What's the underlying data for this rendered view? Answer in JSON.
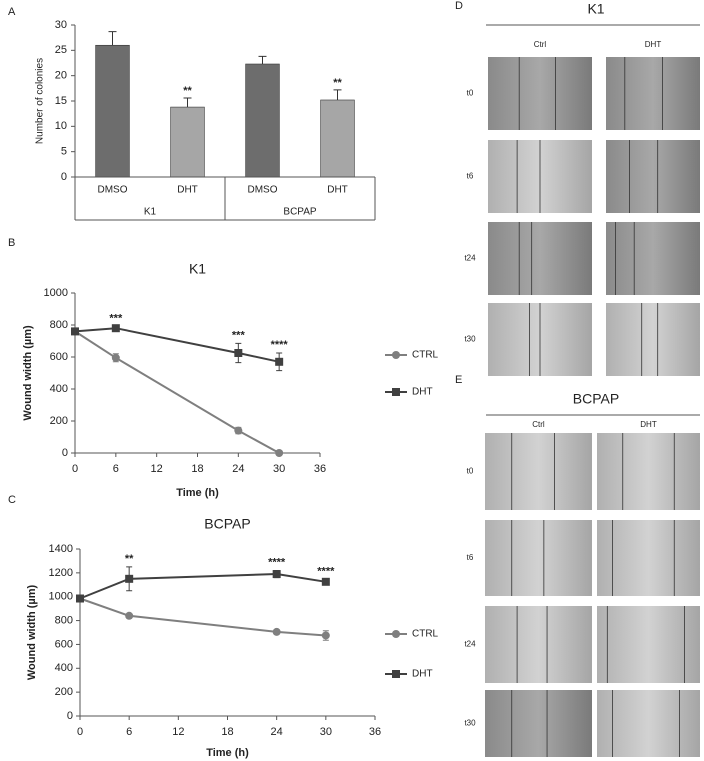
{
  "chart_data": [
    {
      "type": "bar",
      "panel": "A",
      "y_label": "Number of colonies",
      "categories": [
        "DMSO",
        "DHT",
        "DMSO",
        "DHT"
      ],
      "groups": [
        "K1",
        "BCPAP"
      ],
      "values": [
        26,
        13.8,
        22.3,
        15.2
      ],
      "errors": [
        2.7,
        1.8,
        1.5,
        2.0
      ],
      "colors": [
        "#6d6d6d",
        "#a6a6a6",
        "#6d6d6d",
        "#a6a6a6"
      ],
      "significance": [
        null,
        "**",
        null,
        "**"
      ],
      "ylim": [
        0,
        30
      ],
      "yticks": [
        0,
        5,
        10,
        15,
        20,
        25,
        30
      ]
    },
    {
      "type": "line",
      "panel": "B",
      "title": "K1",
      "x_label": "Time (h)",
      "y_label": "Wound width (µm)",
      "x": [
        0,
        6,
        24,
        30
      ],
      "series": [
        {
          "name": "CTRL",
          "color": "#7f7f7f",
          "marker": "circle",
          "values": [
            760,
            595,
            140,
            0
          ],
          "errors": [
            0,
            25,
            20,
            0
          ]
        },
        {
          "name": "DHT",
          "color": "#404040",
          "marker": "square",
          "values": [
            760,
            780,
            625,
            570
          ],
          "errors": [
            0,
            10,
            60,
            55
          ]
        }
      ],
      "significance": [
        null,
        "***",
        "***",
        "****"
      ],
      "xlim": [
        0,
        36
      ],
      "xticks": [
        0,
        6,
        12,
        18,
        24,
        30,
        36
      ],
      "ylim": [
        0,
        1000
      ],
      "yticks": [
        0,
        200,
        400,
        600,
        800,
        1000
      ]
    },
    {
      "type": "line",
      "panel": "C",
      "title": "BCPAP",
      "x_label": "Time (h)",
      "y_label": "Wound width (µm)",
      "x": [
        0,
        6,
        24,
        30
      ],
      "series": [
        {
          "name": "CTRL",
          "color": "#7f7f7f",
          "marker": "circle",
          "values": [
            985,
            840,
            705,
            675
          ],
          "errors": [
            0,
            15,
            15,
            40
          ]
        },
        {
          "name": "DHT",
          "color": "#404040",
          "marker": "square",
          "values": [
            985,
            1150,
            1190,
            1125
          ],
          "errors": [
            0,
            100,
            30,
            20
          ]
        }
      ],
      "significance": [
        null,
        "**",
        "****",
        "****"
      ],
      "xlim": [
        0,
        36
      ],
      "xticks": [
        0,
        6,
        12,
        18,
        24,
        30,
        36
      ],
      "ylim": [
        0,
        1400
      ],
      "yticks": [
        0,
        200,
        400,
        600,
        800,
        1000,
        1200,
        1400
      ]
    }
  ],
  "panels": [
    {
      "label": "D",
      "title": "K1",
      "columns": [
        "Ctrl",
        "DHT"
      ],
      "rows": [
        "t0",
        "t6",
        "t24",
        "t30"
      ]
    },
    {
      "label": "E",
      "title": "BCPAP",
      "columns": [
        "Ctrl",
        "DHT"
      ],
      "rows": [
        "t0",
        "t6",
        "t24",
        "t30"
      ]
    }
  ]
}
